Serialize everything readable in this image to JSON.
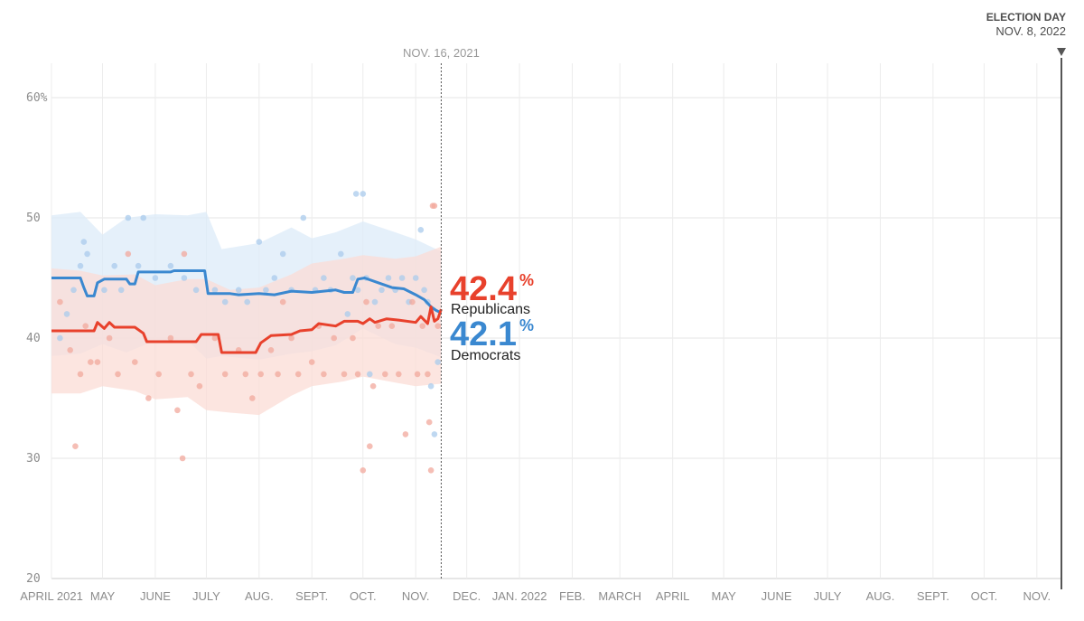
{
  "chart_data": {
    "type": "line",
    "ylim": [
      20,
      62
    ],
    "x_range": [
      "2021-04-01",
      "2022-11-08"
    ],
    "y_ticks": [
      {
        "value": 20,
        "label": "20"
      },
      {
        "value": 30,
        "label": "30"
      },
      {
        "value": 40,
        "label": "40"
      },
      {
        "value": 50,
        "label": "50"
      },
      {
        "value": 60,
        "label": "60%"
      }
    ],
    "x_ticks": [
      {
        "date": "2021-04-01",
        "label": "APRIL 2021"
      },
      {
        "date": "2021-05-01",
        "label": "MAY"
      },
      {
        "date": "2021-06-01",
        "label": "JUNE"
      },
      {
        "date": "2021-07-01",
        "label": "JULY"
      },
      {
        "date": "2021-08-01",
        "label": "AUG."
      },
      {
        "date": "2021-09-01",
        "label": "SEPT."
      },
      {
        "date": "2021-10-01",
        "label": "OCT."
      },
      {
        "date": "2021-11-01",
        "label": "NOV."
      },
      {
        "date": "2021-12-01",
        "label": "DEC."
      },
      {
        "date": "2022-01-01",
        "label": "JAN. 2022"
      },
      {
        "date": "2022-02-01",
        "label": "FEB."
      },
      {
        "date": "2022-03-01",
        "label": "MARCH"
      },
      {
        "date": "2022-04-01",
        "label": "APRIL"
      },
      {
        "date": "2022-05-01",
        "label": "MAY"
      },
      {
        "date": "2022-06-01",
        "label": "JUNE"
      },
      {
        "date": "2022-07-01",
        "label": "JULY"
      },
      {
        "date": "2022-08-01",
        "label": "AUG."
      },
      {
        "date": "2022-09-01",
        "label": "SEPT."
      },
      {
        "date": "2022-10-01",
        "label": "OCT."
      },
      {
        "date": "2022-11-01",
        "label": "NOV."
      }
    ],
    "current_marker": {
      "date": "2021-11-16",
      "label": "NOV. 16, 2021"
    },
    "election_marker": {
      "date": "2022-11-08",
      "title": "ELECTION DAY",
      "label": "NOV. 8, 2022"
    },
    "series": [
      {
        "name": "Democrats",
        "color": "#3a88d0",
        "light_color": "#a9cbec",
        "band_color": "#dcebf8",
        "current_value": "42.1",
        "values": [
          {
            "date": "2021-04-01",
            "y": 45.0
          },
          {
            "date": "2021-04-18",
            "y": 45.0
          },
          {
            "date": "2021-04-20",
            "y": 44.2
          },
          {
            "date": "2021-04-22",
            "y": 43.5
          },
          {
            "date": "2021-04-26",
            "y": 43.5
          },
          {
            "date": "2021-04-28",
            "y": 44.6
          },
          {
            "date": "2021-05-02",
            "y": 44.9
          },
          {
            "date": "2021-05-15",
            "y": 44.9
          },
          {
            "date": "2021-05-17",
            "y": 44.5
          },
          {
            "date": "2021-05-20",
            "y": 44.5
          },
          {
            "date": "2021-05-22",
            "y": 45.5
          },
          {
            "date": "2021-06-10",
            "y": 45.5
          },
          {
            "date": "2021-06-12",
            "y": 45.6
          },
          {
            "date": "2021-06-30",
            "y": 45.6
          },
          {
            "date": "2021-07-02",
            "y": 43.7
          },
          {
            "date": "2021-07-15",
            "y": 43.7
          },
          {
            "date": "2021-07-20",
            "y": 43.6
          },
          {
            "date": "2021-08-01",
            "y": 43.7
          },
          {
            "date": "2021-08-10",
            "y": 43.6
          },
          {
            "date": "2021-08-20",
            "y": 43.9
          },
          {
            "date": "2021-09-01",
            "y": 43.8
          },
          {
            "date": "2021-09-15",
            "y": 44.0
          },
          {
            "date": "2021-09-20",
            "y": 43.8
          },
          {
            "date": "2021-09-25",
            "y": 43.8
          },
          {
            "date": "2021-09-28",
            "y": 44.9
          },
          {
            "date": "2021-10-02",
            "y": 45.0
          },
          {
            "date": "2021-10-10",
            "y": 44.6
          },
          {
            "date": "2021-10-18",
            "y": 44.2
          },
          {
            "date": "2021-10-25",
            "y": 44.1
          },
          {
            "date": "2021-11-01",
            "y": 43.6
          },
          {
            "date": "2021-11-06",
            "y": 43.2
          },
          {
            "date": "2021-11-10",
            "y": 42.6
          },
          {
            "date": "2021-11-13",
            "y": 42.3
          },
          {
            "date": "2021-11-16",
            "y": 42.1
          }
        ],
        "band": [
          {
            "date": "2021-04-01",
            "lo": 38.5,
            "hi": 50.2
          },
          {
            "date": "2021-04-18",
            "lo": 38.7,
            "hi": 50.5
          },
          {
            "date": "2021-05-01",
            "lo": 39.5,
            "hi": 48.6
          },
          {
            "date": "2021-05-15",
            "lo": 38.8,
            "hi": 50.0
          },
          {
            "date": "2021-06-01",
            "lo": 39.8,
            "hi": 50.3
          },
          {
            "date": "2021-06-20",
            "lo": 39.8,
            "hi": 50.2
          },
          {
            "date": "2021-07-01",
            "lo": 38.3,
            "hi": 50.5
          },
          {
            "date": "2021-07-10",
            "lo": 38.5,
            "hi": 47.4
          },
          {
            "date": "2021-08-01",
            "lo": 38.2,
            "hi": 47.9
          },
          {
            "date": "2021-08-20",
            "lo": 38.7,
            "hi": 49.2
          },
          {
            "date": "2021-09-01",
            "lo": 38.9,
            "hi": 48.3
          },
          {
            "date": "2021-09-15",
            "lo": 39.4,
            "hi": 48.8
          },
          {
            "date": "2021-10-01",
            "lo": 40.8,
            "hi": 49.7
          },
          {
            "date": "2021-10-20",
            "lo": 39.5,
            "hi": 48.8
          },
          {
            "date": "2021-11-01",
            "lo": 39.2,
            "hi": 48.2
          },
          {
            "date": "2021-11-16",
            "lo": 38.4,
            "hi": 47.2
          }
        ],
        "polls": [
          {
            "date": "2021-04-06",
            "y": 40
          },
          {
            "date": "2021-04-10",
            "y": 42
          },
          {
            "date": "2021-04-14",
            "y": 44
          },
          {
            "date": "2021-04-18",
            "y": 46
          },
          {
            "date": "2021-04-20",
            "y": 48
          },
          {
            "date": "2021-04-22",
            "y": 47
          },
          {
            "date": "2021-05-02",
            "y": 44
          },
          {
            "date": "2021-05-08",
            "y": 46
          },
          {
            "date": "2021-05-12",
            "y": 44
          },
          {
            "date": "2021-05-16",
            "y": 50
          },
          {
            "date": "2021-05-22",
            "y": 46
          },
          {
            "date": "2021-05-25",
            "y": 50
          },
          {
            "date": "2021-06-01",
            "y": 45
          },
          {
            "date": "2021-06-10",
            "y": 46
          },
          {
            "date": "2021-06-18",
            "y": 45
          },
          {
            "date": "2021-06-25",
            "y": 44
          },
          {
            "date": "2021-07-06",
            "y": 44
          },
          {
            "date": "2021-07-12",
            "y": 43
          },
          {
            "date": "2021-07-20",
            "y": 44
          },
          {
            "date": "2021-07-25",
            "y": 43
          },
          {
            "date": "2021-08-01",
            "y": 48
          },
          {
            "date": "2021-08-05",
            "y": 44
          },
          {
            "date": "2021-08-10",
            "y": 45
          },
          {
            "date": "2021-08-15",
            "y": 47
          },
          {
            "date": "2021-08-20",
            "y": 44
          },
          {
            "date": "2021-08-27",
            "y": 50
          },
          {
            "date": "2021-09-03",
            "y": 44
          },
          {
            "date": "2021-09-08",
            "y": 45
          },
          {
            "date": "2021-09-12",
            "y": 44
          },
          {
            "date": "2021-09-18",
            "y": 47
          },
          {
            "date": "2021-09-22",
            "y": 42
          },
          {
            "date": "2021-09-25",
            "y": 45
          },
          {
            "date": "2021-09-28",
            "y": 44
          },
          {
            "date": "2021-10-03",
            "y": 45
          },
          {
            "date": "2021-09-27",
            "y": 52
          },
          {
            "date": "2021-10-01",
            "y": 52
          },
          {
            "date": "2021-10-05",
            "y": 37
          },
          {
            "date": "2021-10-08",
            "y": 43
          },
          {
            "date": "2021-10-12",
            "y": 44
          },
          {
            "date": "2021-10-16",
            "y": 45
          },
          {
            "date": "2021-10-20",
            "y": 44
          },
          {
            "date": "2021-10-24",
            "y": 45
          },
          {
            "date": "2021-10-28",
            "y": 43
          },
          {
            "date": "2021-11-01",
            "y": 45
          },
          {
            "date": "2021-11-04",
            "y": 49
          },
          {
            "date": "2021-11-06",
            "y": 44
          },
          {
            "date": "2021-11-08",
            "y": 43
          },
          {
            "date": "2021-11-10",
            "y": 36
          },
          {
            "date": "2021-11-12",
            "y": 32
          },
          {
            "date": "2021-11-14",
            "y": 38
          }
        ]
      },
      {
        "name": "Republicans",
        "color": "#e8412c",
        "light_color": "#f2a89c",
        "band_color": "#fbdcd6",
        "current_value": "42.4",
        "values": [
          {
            "date": "2021-04-01",
            "y": 40.6
          },
          {
            "date": "2021-04-26",
            "y": 40.6
          },
          {
            "date": "2021-04-28",
            "y": 41.3
          },
          {
            "date": "2021-05-02",
            "y": 40.8
          },
          {
            "date": "2021-05-05",
            "y": 41.3
          },
          {
            "date": "2021-05-08",
            "y": 40.9
          },
          {
            "date": "2021-05-20",
            "y": 40.9
          },
          {
            "date": "2021-05-25",
            "y": 40.4
          },
          {
            "date": "2021-05-27",
            "y": 39.7
          },
          {
            "date": "2021-06-25",
            "y": 39.7
          },
          {
            "date": "2021-06-28",
            "y": 40.3
          },
          {
            "date": "2021-07-08",
            "y": 40.3
          },
          {
            "date": "2021-07-10",
            "y": 38.8
          },
          {
            "date": "2021-07-30",
            "y": 38.8
          },
          {
            "date": "2021-08-02",
            "y": 39.6
          },
          {
            "date": "2021-08-08",
            "y": 40.2
          },
          {
            "date": "2021-08-20",
            "y": 40.3
          },
          {
            "date": "2021-08-25",
            "y": 40.6
          },
          {
            "date": "2021-09-01",
            "y": 40.7
          },
          {
            "date": "2021-09-05",
            "y": 41.2
          },
          {
            "date": "2021-09-15",
            "y": 41.0
          },
          {
            "date": "2021-09-20",
            "y": 41.4
          },
          {
            "date": "2021-09-28",
            "y": 41.4
          },
          {
            "date": "2021-10-01",
            "y": 41.2
          },
          {
            "date": "2021-10-05",
            "y": 41.6
          },
          {
            "date": "2021-10-08",
            "y": 41.3
          },
          {
            "date": "2021-10-15",
            "y": 41.6
          },
          {
            "date": "2021-10-22",
            "y": 41.5
          },
          {
            "date": "2021-11-01",
            "y": 41.3
          },
          {
            "date": "2021-11-04",
            "y": 41.8
          },
          {
            "date": "2021-11-08",
            "y": 41.2
          },
          {
            "date": "2021-11-10",
            "y": 42.6
          },
          {
            "date": "2021-11-12",
            "y": 41.4
          },
          {
            "date": "2021-11-14",
            "y": 41.6
          },
          {
            "date": "2021-11-16",
            "y": 42.4
          }
        ],
        "band": [
          {
            "date": "2021-04-01",
            "lo": 35.4,
            "hi": 45.8
          },
          {
            "date": "2021-04-18",
            "lo": 35.4,
            "hi": 45.6
          },
          {
            "date": "2021-05-01",
            "lo": 36.0,
            "hi": 45.2
          },
          {
            "date": "2021-05-20",
            "lo": 35.6,
            "hi": 45.3
          },
          {
            "date": "2021-06-01",
            "lo": 34.9,
            "hi": 44.4
          },
          {
            "date": "2021-06-20",
            "lo": 35.1,
            "hi": 44.9
          },
          {
            "date": "2021-07-01",
            "lo": 34.0,
            "hi": 44.9
          },
          {
            "date": "2021-07-15",
            "lo": 33.8,
            "hi": 44.0
          },
          {
            "date": "2021-08-01",
            "lo": 33.6,
            "hi": 44.2
          },
          {
            "date": "2021-08-20",
            "lo": 35.2,
            "hi": 45.3
          },
          {
            "date": "2021-09-01",
            "lo": 36.0,
            "hi": 46.2
          },
          {
            "date": "2021-09-20",
            "lo": 36.4,
            "hi": 46.6
          },
          {
            "date": "2021-10-01",
            "lo": 36.8,
            "hi": 46.9
          },
          {
            "date": "2021-10-20",
            "lo": 36.3,
            "hi": 46.6
          },
          {
            "date": "2021-11-01",
            "lo": 36.0,
            "hi": 46.8
          },
          {
            "date": "2021-11-16",
            "lo": 36.2,
            "hi": 47.6
          }
        ],
        "polls": [
          {
            "date": "2021-04-06",
            "y": 43
          },
          {
            "date": "2021-04-12",
            "y": 39
          },
          {
            "date": "2021-04-15",
            "y": 31
          },
          {
            "date": "2021-04-18",
            "y": 37
          },
          {
            "date": "2021-04-21",
            "y": 41
          },
          {
            "date": "2021-04-24",
            "y": 38
          },
          {
            "date": "2021-04-28",
            "y": 38
          },
          {
            "date": "2021-05-05",
            "y": 40
          },
          {
            "date": "2021-05-10",
            "y": 37
          },
          {
            "date": "2021-05-16",
            "y": 47
          },
          {
            "date": "2021-05-20",
            "y": 38
          },
          {
            "date": "2021-05-28",
            "y": 35
          },
          {
            "date": "2021-06-03",
            "y": 37
          },
          {
            "date": "2021-06-10",
            "y": 40
          },
          {
            "date": "2021-06-14",
            "y": 34
          },
          {
            "date": "2021-06-17",
            "y": 30
          },
          {
            "date": "2021-06-18",
            "y": 47
          },
          {
            "date": "2021-06-22",
            "y": 37
          },
          {
            "date": "2021-06-27",
            "y": 36
          },
          {
            "date": "2021-07-06",
            "y": 40
          },
          {
            "date": "2021-07-12",
            "y": 37
          },
          {
            "date": "2021-07-20",
            "y": 39
          },
          {
            "date": "2021-07-24",
            "y": 37
          },
          {
            "date": "2021-07-28",
            "y": 35
          },
          {
            "date": "2021-08-02",
            "y": 37
          },
          {
            "date": "2021-08-08",
            "y": 39
          },
          {
            "date": "2021-08-12",
            "y": 37
          },
          {
            "date": "2021-08-15",
            "y": 43
          },
          {
            "date": "2021-08-20",
            "y": 40
          },
          {
            "date": "2021-08-24",
            "y": 37
          },
          {
            "date": "2021-09-01",
            "y": 38
          },
          {
            "date": "2021-09-05",
            "y": 41
          },
          {
            "date": "2021-09-08",
            "y": 37
          },
          {
            "date": "2021-09-14",
            "y": 40
          },
          {
            "date": "2021-09-20",
            "y": 37
          },
          {
            "date": "2021-09-25",
            "y": 40
          },
          {
            "date": "2021-09-28",
            "y": 37
          },
          {
            "date": "2021-10-01",
            "y": 29
          },
          {
            "date": "2021-10-03",
            "y": 43
          },
          {
            "date": "2021-10-05",
            "y": 31
          },
          {
            "date": "2021-10-07",
            "y": 36
          },
          {
            "date": "2021-10-10",
            "y": 41
          },
          {
            "date": "2021-10-14",
            "y": 37
          },
          {
            "date": "2021-10-18",
            "y": 41
          },
          {
            "date": "2021-10-22",
            "y": 37
          },
          {
            "date": "2021-10-26",
            "y": 32
          },
          {
            "date": "2021-10-30",
            "y": 43
          },
          {
            "date": "2021-11-02",
            "y": 37
          },
          {
            "date": "2021-11-05",
            "y": 41
          },
          {
            "date": "2021-11-08",
            "y": 37
          },
          {
            "date": "2021-11-09",
            "y": 33
          },
          {
            "date": "2021-11-10",
            "y": 29
          },
          {
            "date": "2021-11-11",
            "y": 51
          },
          {
            "date": "2021-11-12",
            "y": 51
          },
          {
            "date": "2021-11-14",
            "y": 41
          }
        ]
      }
    ]
  }
}
